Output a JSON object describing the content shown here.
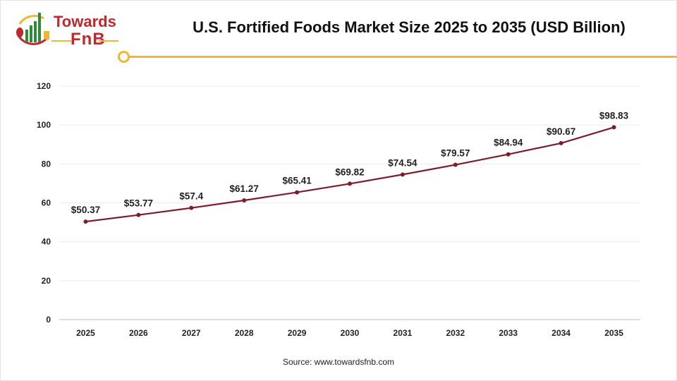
{
  "logo": {
    "line1": "Towards",
    "line2": "FnB"
  },
  "accent_color": "#f2b632",
  "chart_data": {
    "type": "line",
    "title": "U.S. Fortified Foods Market Size 2025 to 2035 (USD Billion)",
    "categories": [
      "2025",
      "2026",
      "2027",
      "2028",
      "2029",
      "2030",
      "2031",
      "2032",
      "2033",
      "2034",
      "2035"
    ],
    "values": [
      50.37,
      53.77,
      57.4,
      61.27,
      65.41,
      69.82,
      74.54,
      79.57,
      84.94,
      90.67,
      98.83
    ],
    "data_labels": [
      "$50.37",
      "$53.77",
      "$57.4",
      "$61.27",
      "$65.41",
      "$69.82",
      "$74.54",
      "$79.57",
      "$84.94",
      "$90.67",
      "$98.83"
    ],
    "ylim": [
      0,
      120
    ],
    "yticks": [
      0,
      20,
      40,
      60,
      80,
      100,
      120
    ],
    "grid": true,
    "line_color": "#7b1e2b",
    "xlabel": "",
    "ylabel": ""
  },
  "source": "Source: www.towardsfnb.com"
}
